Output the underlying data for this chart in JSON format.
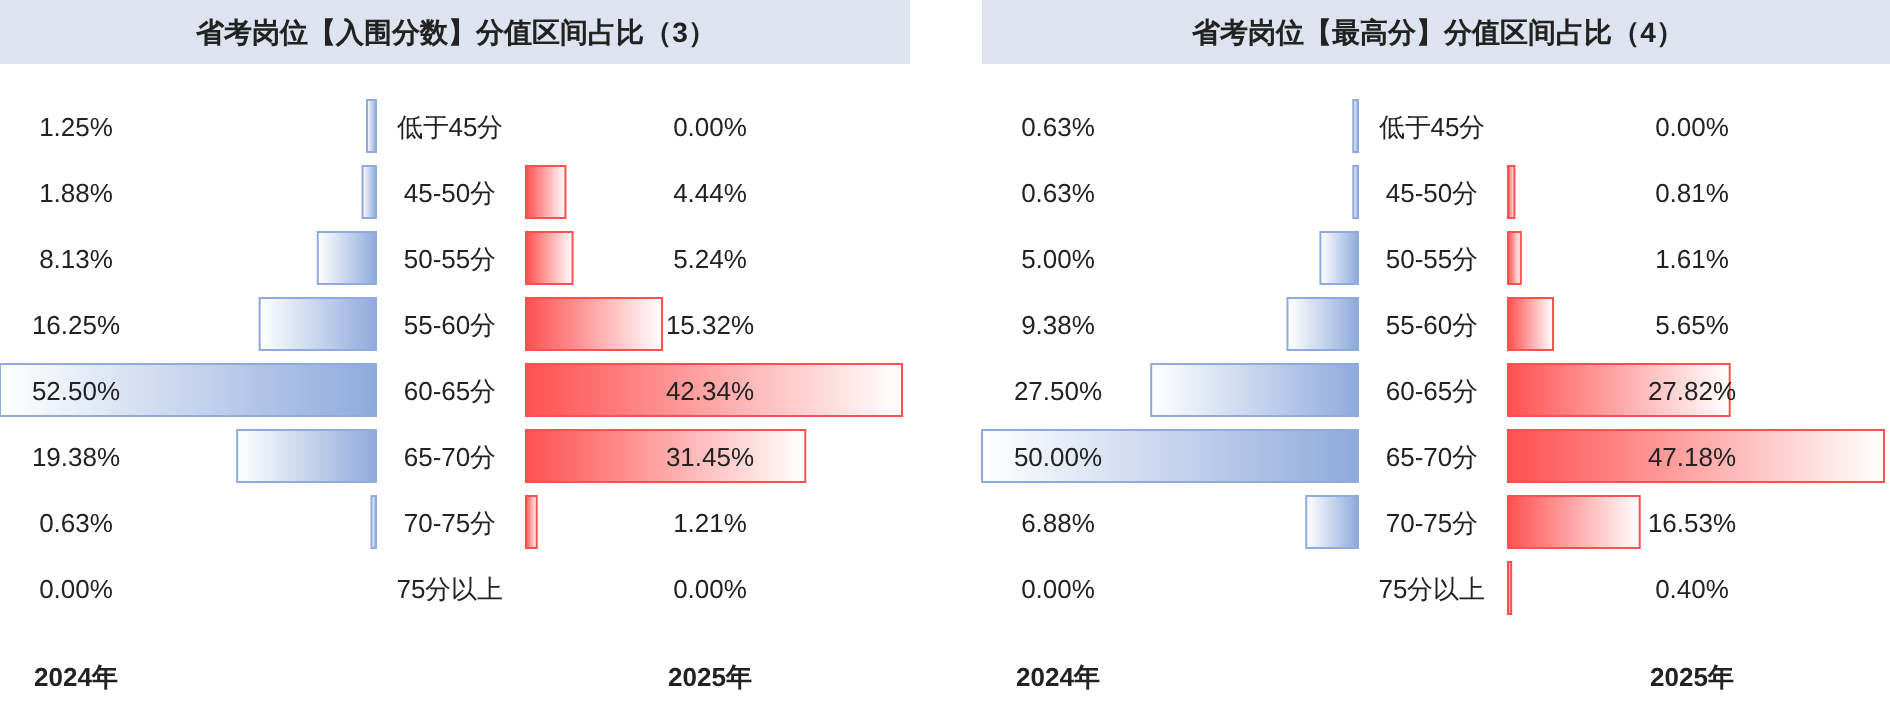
{
  "chart_data": [
    {
      "type": "bar",
      "orientation": "horizontal",
      "title": "省考岗位【入围分数】分值区间占比（3）",
      "categories": [
        "低于45分",
        "45-50分",
        "50-55分",
        "55-60分",
        "60-65分",
        "65-70分",
        "70-75分",
        "75分以上"
      ],
      "series": [
        {
          "name": "2024年",
          "color": "#8faadc",
          "values": [
            1.25,
            1.88,
            8.13,
            16.25,
            52.5,
            19.38,
            0.63,
            0
          ],
          "value_labels": [
            "1.25%",
            "1.88%",
            "8.13%",
            "16.25%",
            "52.50%",
            "19.38%",
            "0.63%",
            "0.00%"
          ]
        }
      ]
    },
    {
      "type": "bar",
      "orientation": "horizontal",
      "categories": [
        null,
        null,
        null,
        null,
        null,
        null,
        null,
        null
      ],
      "series": [
        {
          "name": "2025年",
          "color": "#ff5050",
          "values": [
            0,
            4.44,
            5.24,
            15.32,
            42.34,
            31.45,
            1.21,
            0
          ],
          "value_labels": [
            "0.00%",
            "4.44%",
            "5.24%",
            "15.32%",
            "42.34%",
            "31.45%",
            "1.21%",
            "0.00%"
          ]
        }
      ]
    },
    {
      "type": "bar",
      "orientation": "horizontal",
      "title": "省考岗位【最高分】分值区间占比（4）",
      "categories": [
        "低于45分",
        "45-50分",
        "50-55分",
        "55-60分",
        "60-65分",
        "65-70分",
        "70-75分",
        "75分以上"
      ],
      "series": [
        {
          "name": "2024年",
          "color": "#8faadc",
          "values": [
            0.63,
            0.63,
            5,
            9.38,
            27.5,
            50,
            6.88,
            0
          ],
          "value_labels": [
            "0.63%",
            "0.63%",
            "5.00%",
            "9.38%",
            "27.50%",
            "50.00%",
            "6.88%",
            "0.00%"
          ]
        }
      ]
    },
    {
      "type": "bar",
      "orientation": "horizontal",
      "categories": [
        null,
        null,
        null,
        null,
        null,
        null,
        null,
        null
      ],
      "series": [
        {
          "name": "2025年",
          "color": "#ff5050",
          "values": [
            0,
            0.81,
            1.61,
            5.65,
            27.82,
            47.18,
            16.53,
            0.4
          ],
          "value_labels": [
            "0.00%",
            "0.81%",
            "1.61%",
            "5.65%",
            "27.82%",
            "47.18%",
            "16.53%",
            "0.40%"
          ]
        }
      ]
    }
  ]
}
